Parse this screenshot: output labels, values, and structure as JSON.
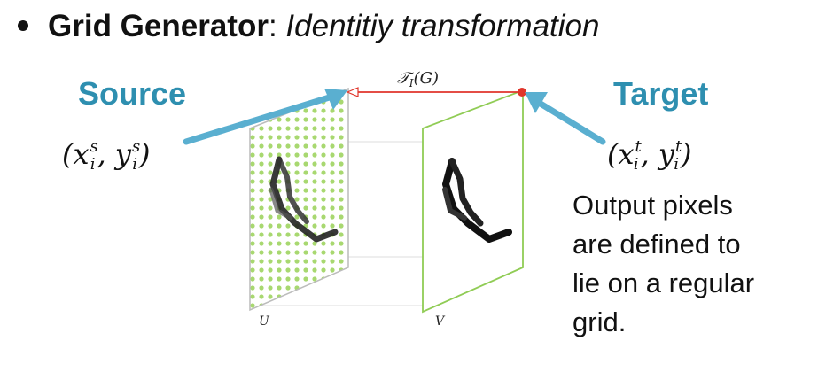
{
  "header": {
    "title_strong": "Grid Generator",
    "title_sep": ":",
    "title_em": "Identitiy transformation"
  },
  "source": {
    "label": "Source",
    "coord": "(x_i^s, y_i^s)"
  },
  "target": {
    "label": "Target",
    "coord": "(x_i^t, y_i^t)"
  },
  "transform": {
    "label": "T_I(G)"
  },
  "planes": {
    "source_name": "U",
    "target_name": "V"
  },
  "note": {
    "lines": [
      "Output pixels",
      "are defined to",
      "lie on a regular",
      "grid."
    ]
  },
  "colors": {
    "accent_blue": "#2e8fb0",
    "arrow_red": "#e0352b",
    "grid_green": "#a8d870",
    "target_frame_green": "#90cc55",
    "source_frame_gray": "#bcbcbc"
  }
}
